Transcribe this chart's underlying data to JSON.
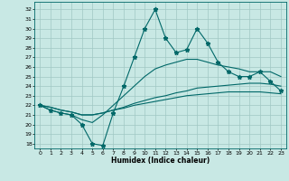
{
  "xlabel": "Humidex (Indice chaleur)",
  "xlim": [
    -0.5,
    23.5
  ],
  "ylim": [
    17.5,
    32.8
  ],
  "yticks": [
    18,
    19,
    20,
    21,
    22,
    23,
    24,
    25,
    26,
    27,
    28,
    29,
    30,
    31,
    32
  ],
  "xticks": [
    0,
    1,
    2,
    3,
    4,
    5,
    6,
    7,
    8,
    9,
    10,
    11,
    12,
    13,
    14,
    15,
    16,
    17,
    18,
    19,
    20,
    21,
    22,
    23
  ],
  "bg_color": "#c8e8e4",
  "grid_color": "#a0c8c4",
  "line_color": "#006868",
  "line1_x": [
    0,
    1,
    2,
    3,
    4,
    5,
    6,
    7,
    8,
    9,
    10,
    11,
    12,
    13,
    14,
    15,
    16,
    17,
    18,
    19,
    20,
    21,
    22,
    23
  ],
  "line1_y": [
    22.0,
    21.5,
    21.2,
    21.0,
    20.0,
    18.0,
    17.8,
    21.2,
    24.0,
    27.0,
    30.0,
    32.0,
    29.0,
    27.5,
    27.8,
    30.0,
    28.5,
    26.5,
    25.5,
    25.0,
    25.0,
    25.5,
    24.5,
    23.5
  ],
  "line2_x": [
    0,
    1,
    2,
    3,
    4,
    5,
    6,
    7,
    8,
    9,
    10,
    11,
    12,
    13,
    14,
    15,
    16,
    17,
    18,
    19,
    20,
    21,
    22,
    23
  ],
  "line2_y": [
    22.0,
    21.5,
    21.2,
    21.0,
    20.5,
    20.2,
    21.0,
    22.0,
    23.0,
    24.0,
    25.0,
    25.8,
    26.2,
    26.5,
    26.8,
    26.8,
    26.5,
    26.2,
    26.0,
    25.8,
    25.5,
    25.5,
    25.5,
    25.0
  ],
  "line3_x": [
    0,
    1,
    2,
    3,
    4,
    5,
    6,
    7,
    8,
    9,
    10,
    11,
    12,
    13,
    14,
    15,
    16,
    17,
    18,
    19,
    20,
    21,
    22,
    23
  ],
  "line3_y": [
    22.0,
    21.8,
    21.5,
    21.3,
    21.0,
    21.0,
    21.2,
    21.5,
    21.8,
    22.2,
    22.5,
    22.8,
    23.0,
    23.3,
    23.5,
    23.8,
    23.9,
    24.0,
    24.1,
    24.2,
    24.3,
    24.3,
    24.2,
    24.0
  ],
  "line4_x": [
    0,
    1,
    2,
    3,
    4,
    5,
    6,
    7,
    8,
    9,
    10,
    11,
    12,
    13,
    14,
    15,
    16,
    17,
    18,
    19,
    20,
    21,
    22,
    23
  ],
  "line4_y": [
    22.0,
    21.8,
    21.5,
    21.3,
    21.0,
    21.0,
    21.2,
    21.5,
    21.7,
    22.0,
    22.2,
    22.4,
    22.6,
    22.8,
    23.0,
    23.1,
    23.2,
    23.3,
    23.4,
    23.4,
    23.4,
    23.4,
    23.3,
    23.2
  ]
}
